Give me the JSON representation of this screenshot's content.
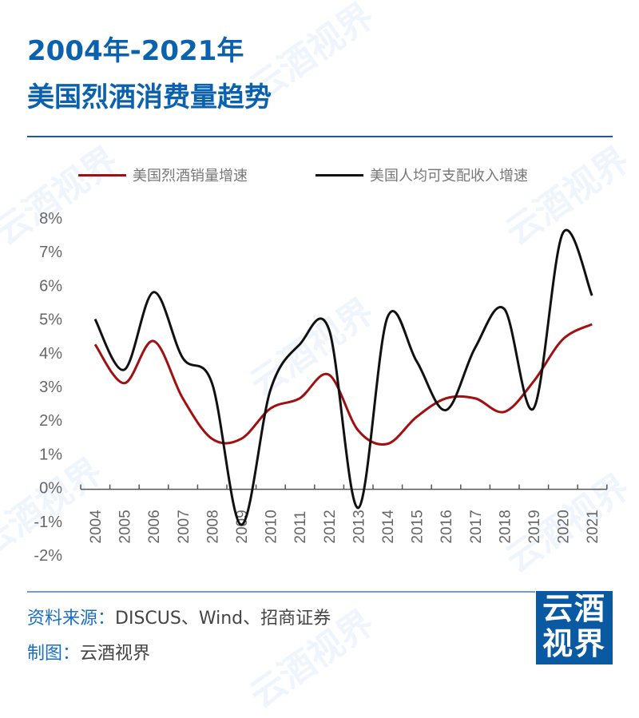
{
  "header": {
    "title_line1": "2004年-2021年",
    "title_line2": "美国烈酒消费量趋势"
  },
  "footer": {
    "source_label": "资料来源：",
    "source_value": "DISCUS、Wind、招商证券",
    "credit_label": "制图：",
    "credit_value": "云酒视界"
  },
  "logo": {
    "text_line1": "云酒",
    "text_line2": "视界",
    "color": "#0a5aa3"
  },
  "watermark": "云酒视界",
  "colors": {
    "title": "#0a62ae",
    "series_red": "#a01010",
    "series_black": "#111111"
  },
  "chart_data": {
    "type": "line",
    "smooth": true,
    "categories": [
      "2004",
      "2005",
      "2006",
      "2007",
      "2008",
      "2009",
      "2010",
      "2011",
      "2012",
      "2013",
      "2014",
      "2015",
      "2016",
      "2017",
      "2018",
      "2019",
      "2020",
      "2021"
    ],
    "ylim": [
      -2,
      8
    ],
    "yticks": [
      "8%",
      "7%",
      "6%",
      "5%",
      "4%",
      "3%",
      "2%",
      "1%",
      "0%",
      "-1%",
      "-2%"
    ],
    "grid": false,
    "legend_position": "top",
    "series": [
      {
        "name": "美国烈酒销量增速",
        "color": "#a01010",
        "values": [
          4.25,
          3.1,
          4.35,
          2.65,
          1.45,
          1.45,
          2.35,
          2.65,
          3.35,
          1.7,
          1.3,
          2.1,
          2.65,
          2.65,
          2.25,
          3.15,
          4.4,
          4.85
        ]
      },
      {
        "name": "美国人均可支配收入增速",
        "color": "#111111",
        "values": [
          5.0,
          3.5,
          5.8,
          3.85,
          3.1,
          -1.1,
          2.9,
          4.25,
          4.7,
          -0.6,
          5.05,
          3.75,
          2.3,
          4.15,
          5.3,
          2.35,
          7.55,
          5.7
        ]
      }
    ]
  }
}
